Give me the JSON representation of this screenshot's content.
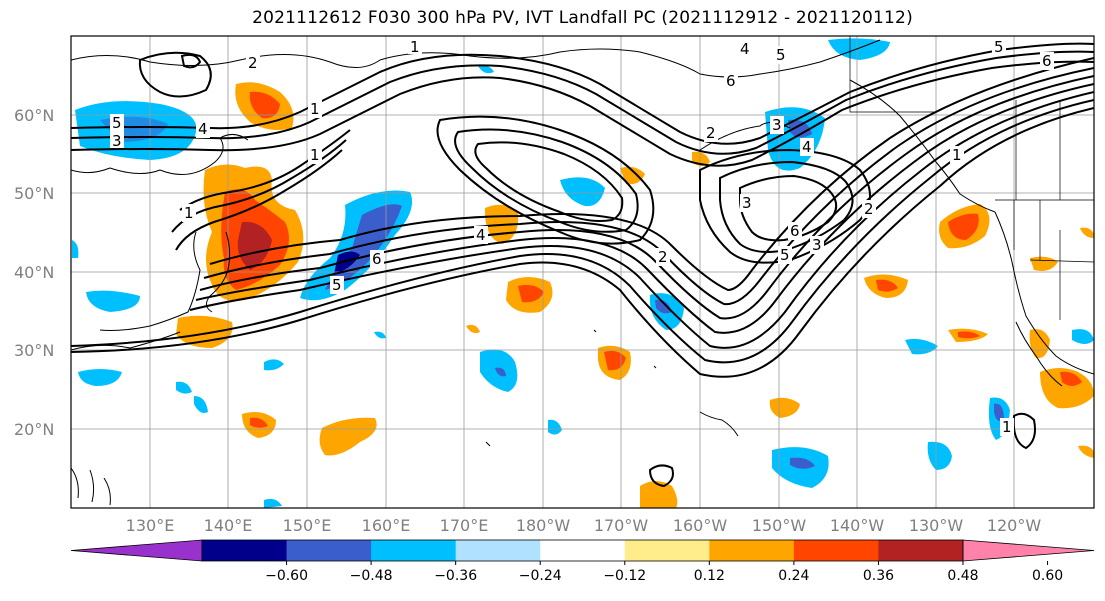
{
  "title": "2021112612 F030 300 hPa PV, IVT Landfall PC (2021112912 - 2021120112)",
  "map": {
    "projection": "PlateCarree",
    "grid": true,
    "lat_labels": [
      "60°N",
      "50°N",
      "40°N",
      "30°N",
      "20°N"
    ],
    "lon_labels": [
      "130°E",
      "140°E",
      "150°E",
      "160°E",
      "170°E",
      "180°W",
      "170°W",
      "160°W",
      "150°W",
      "140°W",
      "130°W",
      "120°W"
    ],
    "pv_contour_labels": [
      "2",
      "1",
      "4",
      "5",
      "3",
      "1",
      "1",
      "4",
      "5",
      "6",
      "3",
      "1",
      "6",
      "2",
      "4",
      "5",
      "6",
      "2",
      "5",
      "3",
      "4",
      "2",
      "3",
      "6",
      "5",
      "1",
      "1"
    ]
  },
  "colorbar": {
    "ticks": [
      "−0.60",
      "−0.48",
      "−0.36",
      "−0.24",
      "−0.12",
      "0.12",
      "0.24",
      "0.36",
      "0.48",
      "0.60"
    ],
    "colors": [
      "#9932cc",
      "#00008b",
      "#3a5fcd",
      "#00bfff",
      "#b0e2ff",
      "#ffffff",
      "#ffec8b",
      "#ffa500",
      "#ff4500",
      "#b22222",
      "#ff82ab"
    ]
  }
}
